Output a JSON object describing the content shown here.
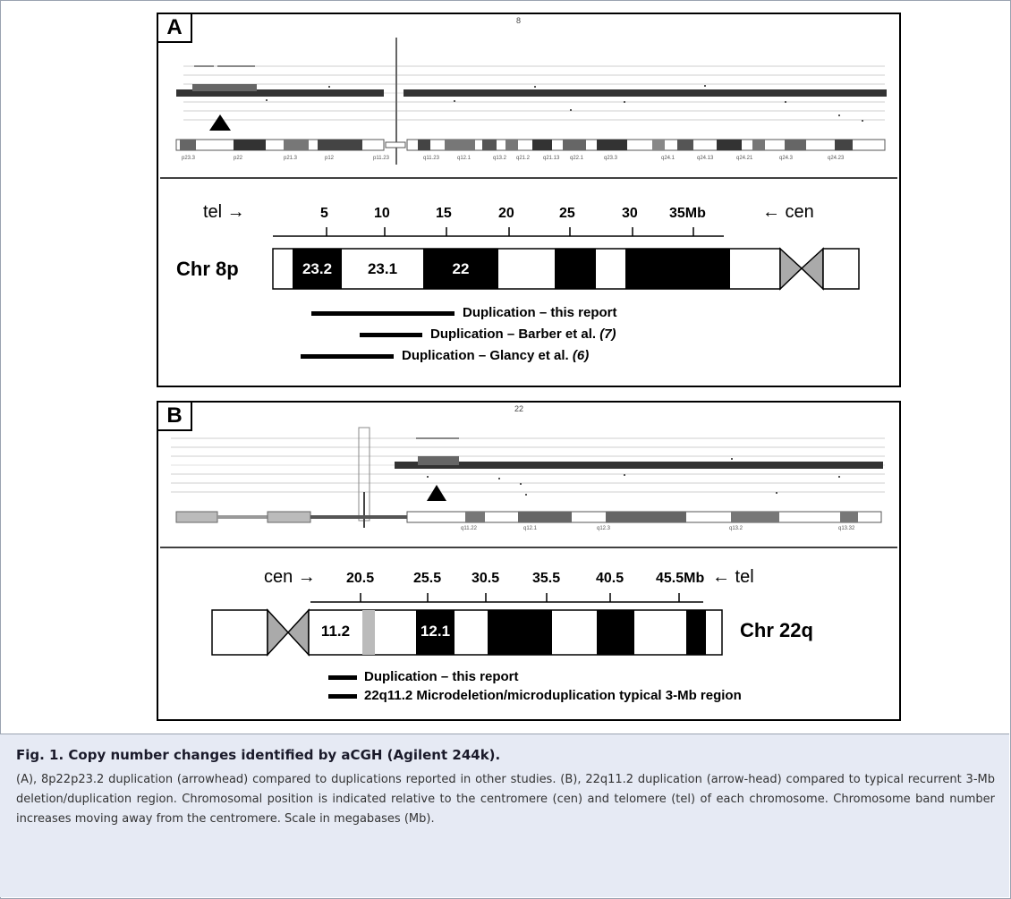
{
  "panel_a": {
    "label": "A",
    "plot_title": "8",
    "scale": {
      "ticks": [
        "5",
        "10",
        "15",
        "20",
        "25",
        "30",
        "35Mb"
      ],
      "left": "tel →",
      "right": "← cen"
    },
    "chromosome": "Chr 8p",
    "bands": [
      "23.2",
      "23.1",
      "22"
    ],
    "ideogram_labels": [
      "p23.3",
      "p22",
      "p21.3",
      "p12",
      "p11.23",
      "q11.23",
      "q12.1",
      "q13.2",
      "q21.2",
      "q21.13",
      "q22.1",
      "q23.3",
      "q24.1",
      "q24.13",
      "q24.21",
      "q24.3",
      "q24.23"
    ],
    "bars": [
      {
        "text": "Duplication – this report",
        "ref": ""
      },
      {
        "text": "Duplication – Barber et al.",
        "ref": "(7)"
      },
      {
        "text": "Duplication – Glancy et al.",
        "ref": "(6)"
      }
    ]
  },
  "panel_b": {
    "label": "B",
    "plot_title": "22",
    "scale": {
      "ticks": [
        "20.5",
        "25.5",
        "30.5",
        "35.5",
        "40.5",
        "45.5Mb"
      ],
      "left": "cen →",
      "right": "← tel"
    },
    "chromosome": "Chr 22q",
    "bands": [
      "11.2",
      "12.1"
    ],
    "ideogram_labels": [
      "q11.22",
      "q12.1",
      "q12.3",
      "q13.2",
      "q13.32"
    ],
    "bars": [
      {
        "text": "Duplication – this report"
      },
      {
        "text": "22q11.2 Microdeletion/microduplication typical 3-Mb region"
      }
    ]
  },
  "caption": {
    "title": "Fig. 1.   Copy number changes identified by aCGH (Agilent 244k).",
    "text": "(A), 8p22p23.2 duplication (arrowhead) compared to duplications reported in other studies. (B), 22q11.2 duplication (arrow-head) compared to typical recurrent 3-Mb deletion/duplication region. Chromosomal position is indicated relative to the centromere (cen) and telomere (tel) of each chromosome. Chromosome band number increases moving away from the centromere. Scale in megabases (Mb)."
  }
}
